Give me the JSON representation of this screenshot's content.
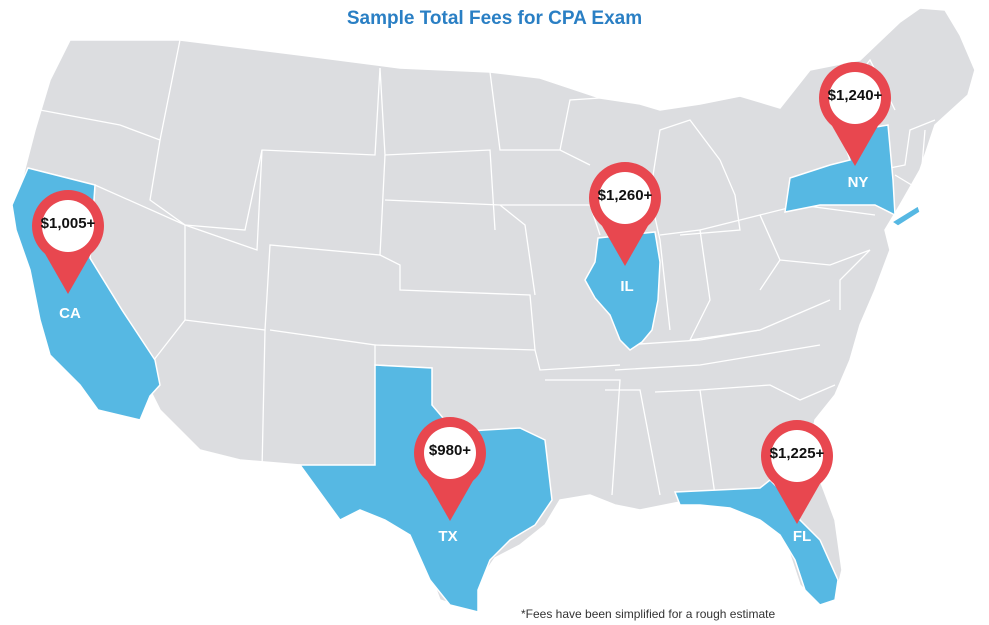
{
  "title": "Sample Total Fees for CPA Exam",
  "footnote": "*Fees have been simplified for a rough estimate",
  "colors": {
    "title": "#2a7fc4",
    "land": "#dcdde0",
    "border": "#ffffff",
    "highlight": "#56b8e3",
    "pin": "#e8474f"
  },
  "states": [
    {
      "abbr": "CA",
      "fee": "$1,005+"
    },
    {
      "abbr": "IL",
      "fee": "$1,260+"
    },
    {
      "abbr": "NY",
      "fee": "$1,240+"
    },
    {
      "abbr": "TX",
      "fee": "$980+"
    },
    {
      "abbr": "FL",
      "fee": "$1,225+"
    }
  ]
}
